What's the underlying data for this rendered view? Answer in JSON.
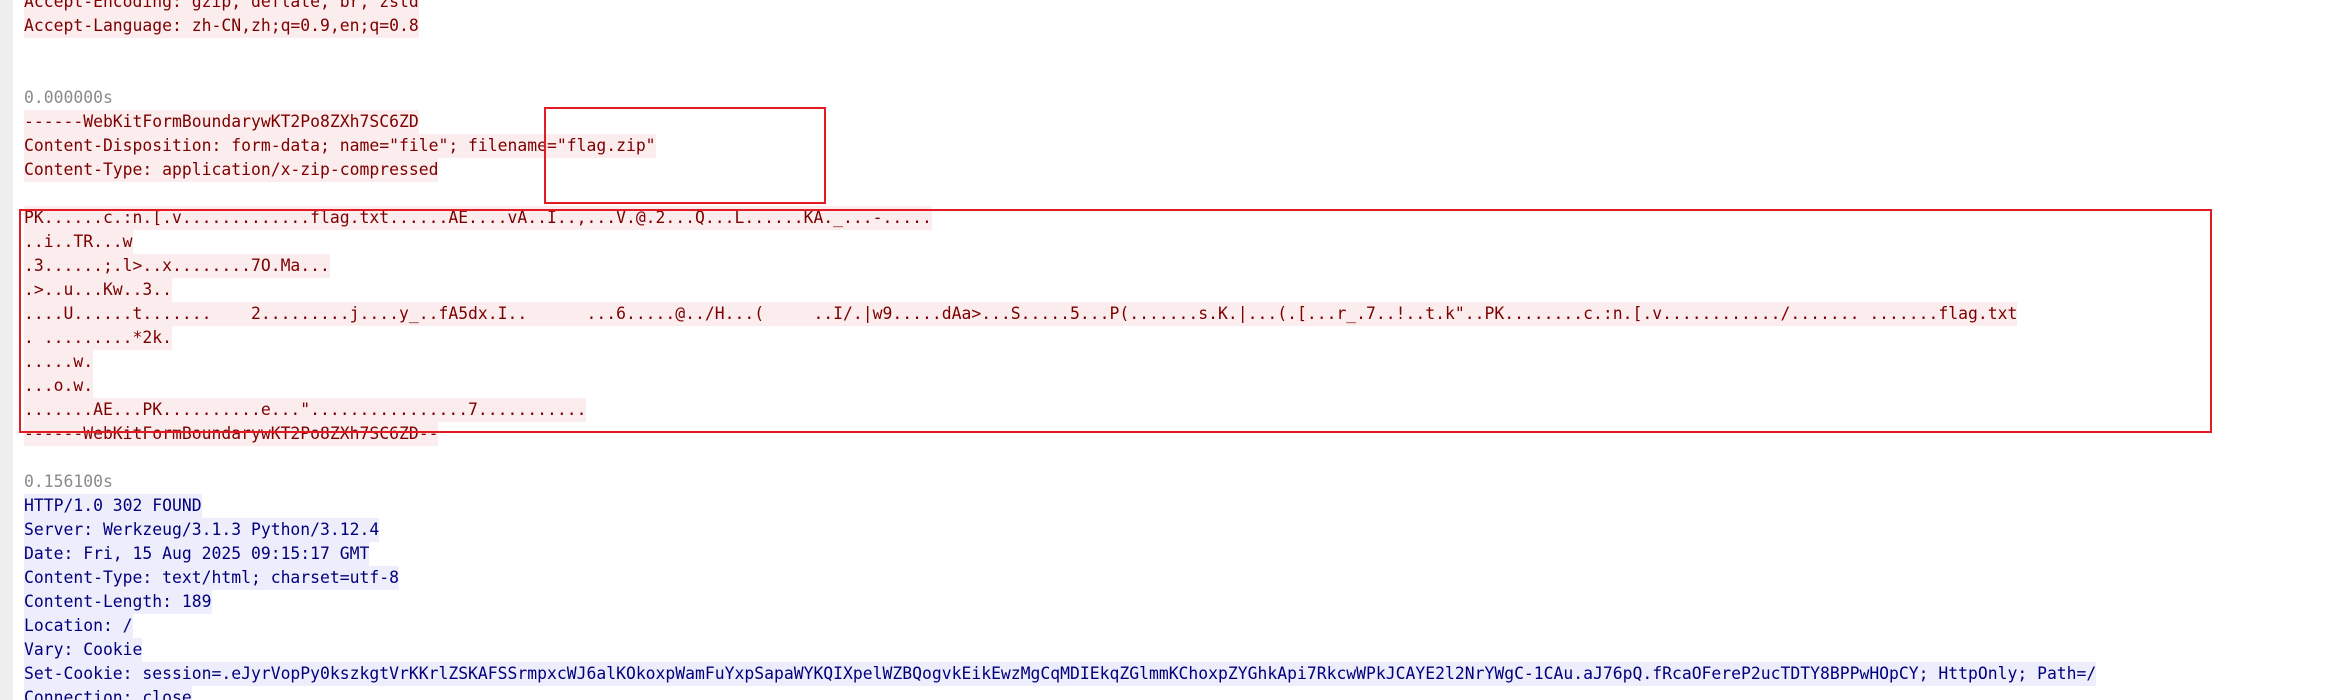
{
  "request_headers": [
    "Accept-Encoding: gzip, deflate, br, zstd",
    "Accept-Language: zh-CN,zh;q=0.9,en;q=0.8"
  ],
  "request_body": {
    "timestamp": "0.000000s",
    "lines": [
      "------WebKitFormBoundarywKT2Po8ZXh7SC6ZD",
      "Content-Disposition: form-data; name=\"file\"; filename=\"flag.zip\"",
      "Content-Type: application/x-zip-compressed"
    ],
    "binary_lines": [
      "PK......c.:n.[.v.............flag.txt......AE....vA..I..,...V.@.2...Q...L......KA._...-.....",
      "..i..TR...w",
      ".3......;.l>..x........7O.Ma...",
      ".>..u...Kw..3..",
      "....U......t.......    2.........j....y_..fA5dx.I..      ...6.....@../H...(     ..I/.|w9.....dAa>...S.....5...P(.......s.K.|...(.[...r_.7..!..t.k\"..PK........c.:n.[.v............/....... .......flag.txt",
      ". .........*2k.",
      ".....w.",
      "...o.w.",
      ".......AE...PK..........e...\"................7..........."
    ],
    "closing_boundary": "------WebKitFormBoundarywKT2Po8ZXh7SC6ZD--"
  },
  "response": {
    "timestamp": "0.156100s",
    "lines": [
      "HTTP/1.0 302 FOUND",
      "Server: Werkzeug/3.1.3 Python/3.12.4",
      "Date: Fri, 15 Aug 2025 09:15:17 GMT",
      "Content-Type: text/html; charset=utf-8",
      "Content-Length: 189",
      "Location: /",
      "Vary: Cookie",
      "Set-Cookie: session=.eJyrVopPy0kszkgtVrKKrlZSKAFSSrmpxcWJ6alKOkoxpWamFuYxpSapaWYKQIXpelWZBQogvkEikEwzMgCqMDIEkqZGlmmKChoxpZYGhkApi7RkcwWPkJCAYE2l2NrYWgC-1CAu.aJ76pQ.fRcaOFereP2ucTDTY8BPPwHOpCY; HttpOnly; Path=/",
      "Connection: close"
    ]
  },
  "colors": {
    "request_text": "#7d0000",
    "request_bg": "#fbeded",
    "response_text": "#00007d",
    "response_bg": "#ededfb",
    "timestamp": "#8a8a8a",
    "annotation_box": "#e31b23"
  }
}
